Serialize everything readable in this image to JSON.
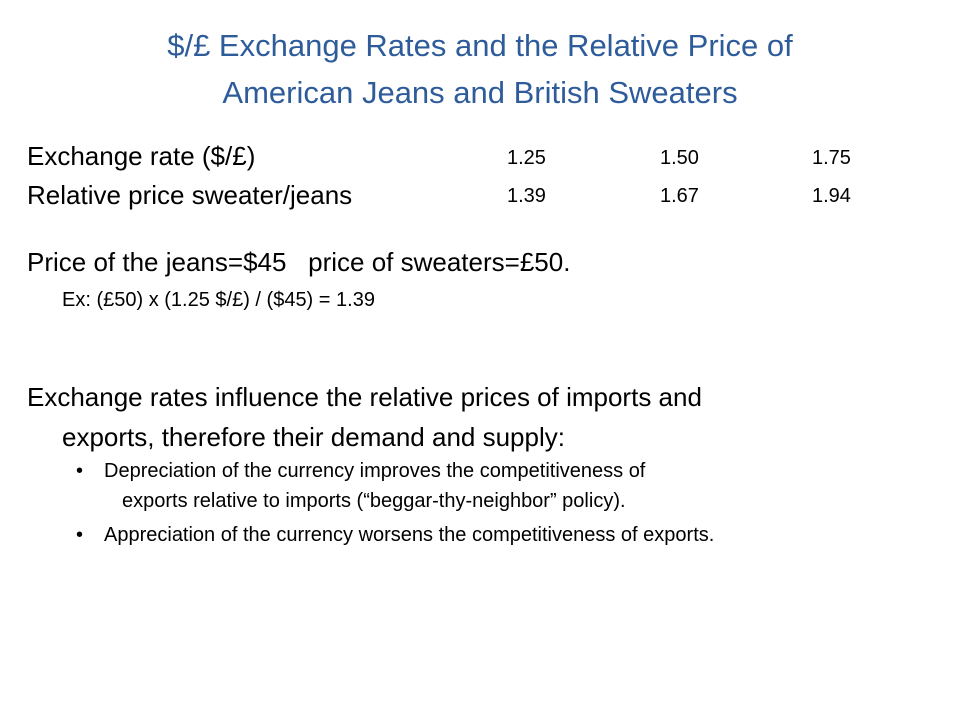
{
  "title": {
    "lines": [
      "$/£ Exchange Rates and the Relative Price of",
      "American Jeans and British Sweaters"
    ]
  },
  "table": {
    "rows": [
      [
        "Exchange rate ($/£)",
        "1.25",
        "1.50",
        "1.75"
      ],
      [
        "Relative price sweater/jeans",
        "1.39",
        "1.67",
        "1.94"
      ]
    ]
  },
  "prices": {
    "text": "Price of the jeans=$45   price of sweaters=£50.",
    "example": "Ex: (£50) x (1.25 $/£) / ($45) = 1.39"
  },
  "paragraph": {
    "lines": [
      "Exchange rates influence the relative prices of imports and",
      "exports, therefore their demand and supply:"
    ]
  },
  "bullets": [
    {
      "lines": [
        "Depreciation of the currency improves the competitiveness of",
        "exports relative to imports (“beggar-thy-neighbor” policy)."
      ]
    },
    {
      "lines": [
        "Appreciation of the currency worsens the competitiveness of exports."
      ]
    }
  ]
}
